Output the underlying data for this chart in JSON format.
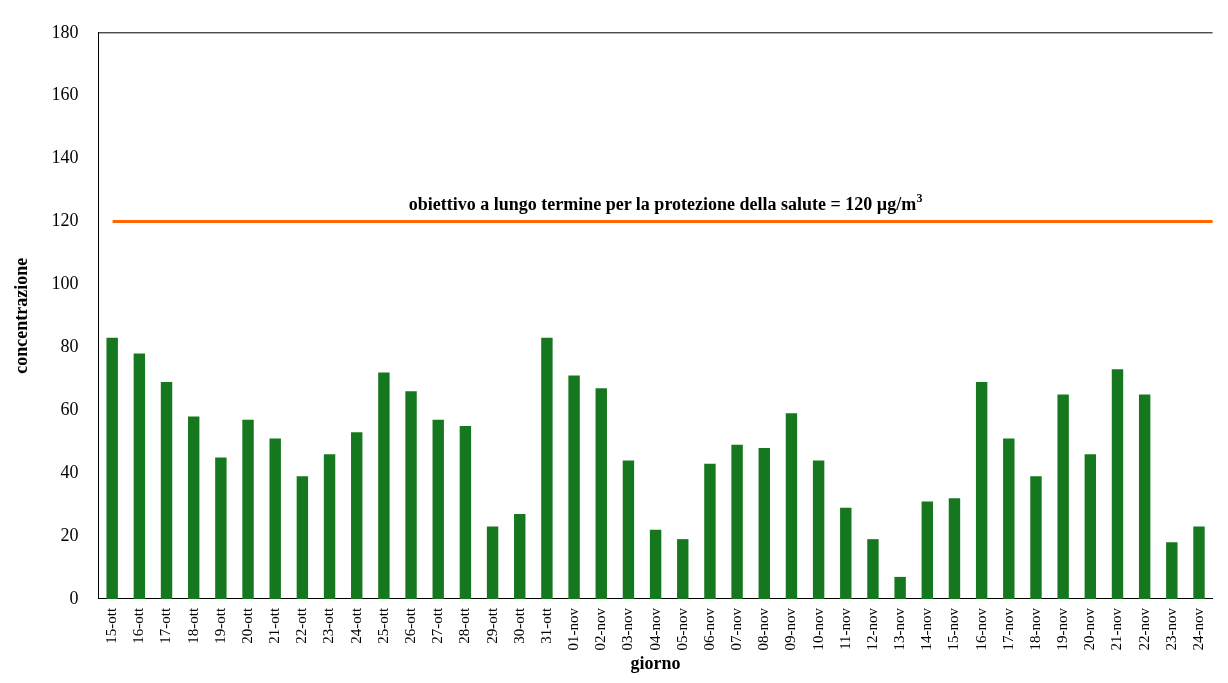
{
  "chart_data": {
    "type": "bar",
    "xlabel": "giorno",
    "ylabel": "concentrazione",
    "categories": [
      "15-ott",
      "16-ott",
      "17-ott",
      "18-ott",
      "19-ott",
      "20-ott",
      "21-ott",
      "22-ott",
      "23-ott",
      "24-ott",
      "25-ott",
      "26-ott",
      "27-ott",
      "28-ott",
      "29-ott",
      "30-ott",
      "31-ott",
      "01-nov",
      "02-nov",
      "03-nov",
      "04-nov",
      "05-nov",
      "06-nov",
      "07-nov",
      "08-nov",
      "09-nov",
      "10-nov",
      "11-nov",
      "12-nov",
      "13-nov",
      "14-nov",
      "15-nov",
      "16-nov",
      "17-nov",
      "18-nov",
      "19-nov",
      "20-nov",
      "21-nov",
      "22-nov",
      "23-nov",
      "24-nov"
    ],
    "values": [
      83,
      78,
      69,
      58,
      45,
      57,
      51,
      39,
      46,
      53,
      72,
      66,
      57,
      55,
      23,
      27,
      83,
      71,
      67,
      44,
      22,
      19,
      43,
      49,
      48,
      59,
      44,
      29,
      19,
      7,
      31,
      32,
      69,
      51,
      39,
      65,
      46,
      73,
      65,
      18,
      23
    ],
    "color": "#16781e",
    "ylim": [
      0,
      180
    ],
    "yticks": [
      0,
      20,
      40,
      60,
      80,
      100,
      120,
      140,
      160,
      180
    ],
    "grid": false,
    "legend": false,
    "ref_lines": [
      {
        "axis": "y",
        "value": 120,
        "label": "obiettivo a lungo termine per la protezione della salute = 120 µg/m$^{3}$",
        "color": "#ff6600"
      }
    ]
  }
}
